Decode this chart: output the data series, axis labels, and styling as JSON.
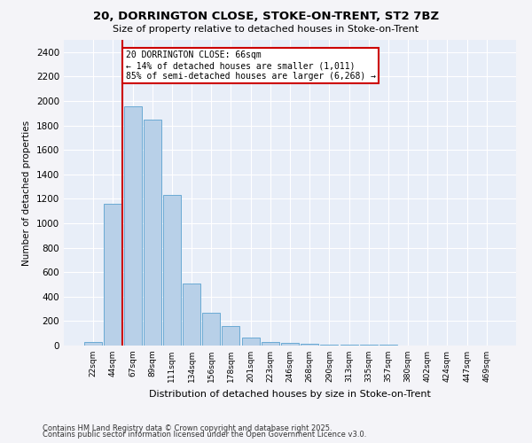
{
  "title1": "20, DORRINGTON CLOSE, STOKE-ON-TRENT, ST2 7BZ",
  "title2": "Size of property relative to detached houses in Stoke-on-Trent",
  "xlabel": "Distribution of detached houses by size in Stoke-on-Trent",
  "ylabel": "Number of detached properties",
  "categories": [
    "22sqm",
    "44sqm",
    "67sqm",
    "89sqm",
    "111sqm",
    "134sqm",
    "156sqm",
    "178sqm",
    "201sqm",
    "223sqm",
    "246sqm",
    "268sqm",
    "290sqm",
    "313sqm",
    "335sqm",
    "357sqm",
    "380sqm",
    "402sqm",
    "424sqm",
    "447sqm",
    "469sqm"
  ],
  "values": [
    30,
    1160,
    1960,
    1850,
    1230,
    510,
    270,
    160,
    65,
    30,
    20,
    15,
    10,
    6,
    5,
    4,
    3,
    2,
    2,
    1,
    1
  ],
  "bar_color": "#b8d0e8",
  "bar_edge_color": "#6aaad4",
  "background_color": "#e8eef8",
  "grid_color": "#ffffff",
  "annotation_text": "20 DORRINGTON CLOSE: 66sqm\n← 14% of detached houses are smaller (1,011)\n85% of semi-detached houses are larger (6,268) →",
  "vline_color": "#cc0000",
  "annotation_box_edge": "#cc0000",
  "ylim": [
    0,
    2500
  ],
  "yticks": [
    0,
    200,
    400,
    600,
    800,
    1000,
    1200,
    1400,
    1600,
    1800,
    2000,
    2200,
    2400
  ],
  "footnote1": "Contains HM Land Registry data © Crown copyright and database right 2025.",
  "footnote2": "Contains public sector information licensed under the Open Government Licence v3.0.",
  "fig_bg": "#f4f4f8"
}
